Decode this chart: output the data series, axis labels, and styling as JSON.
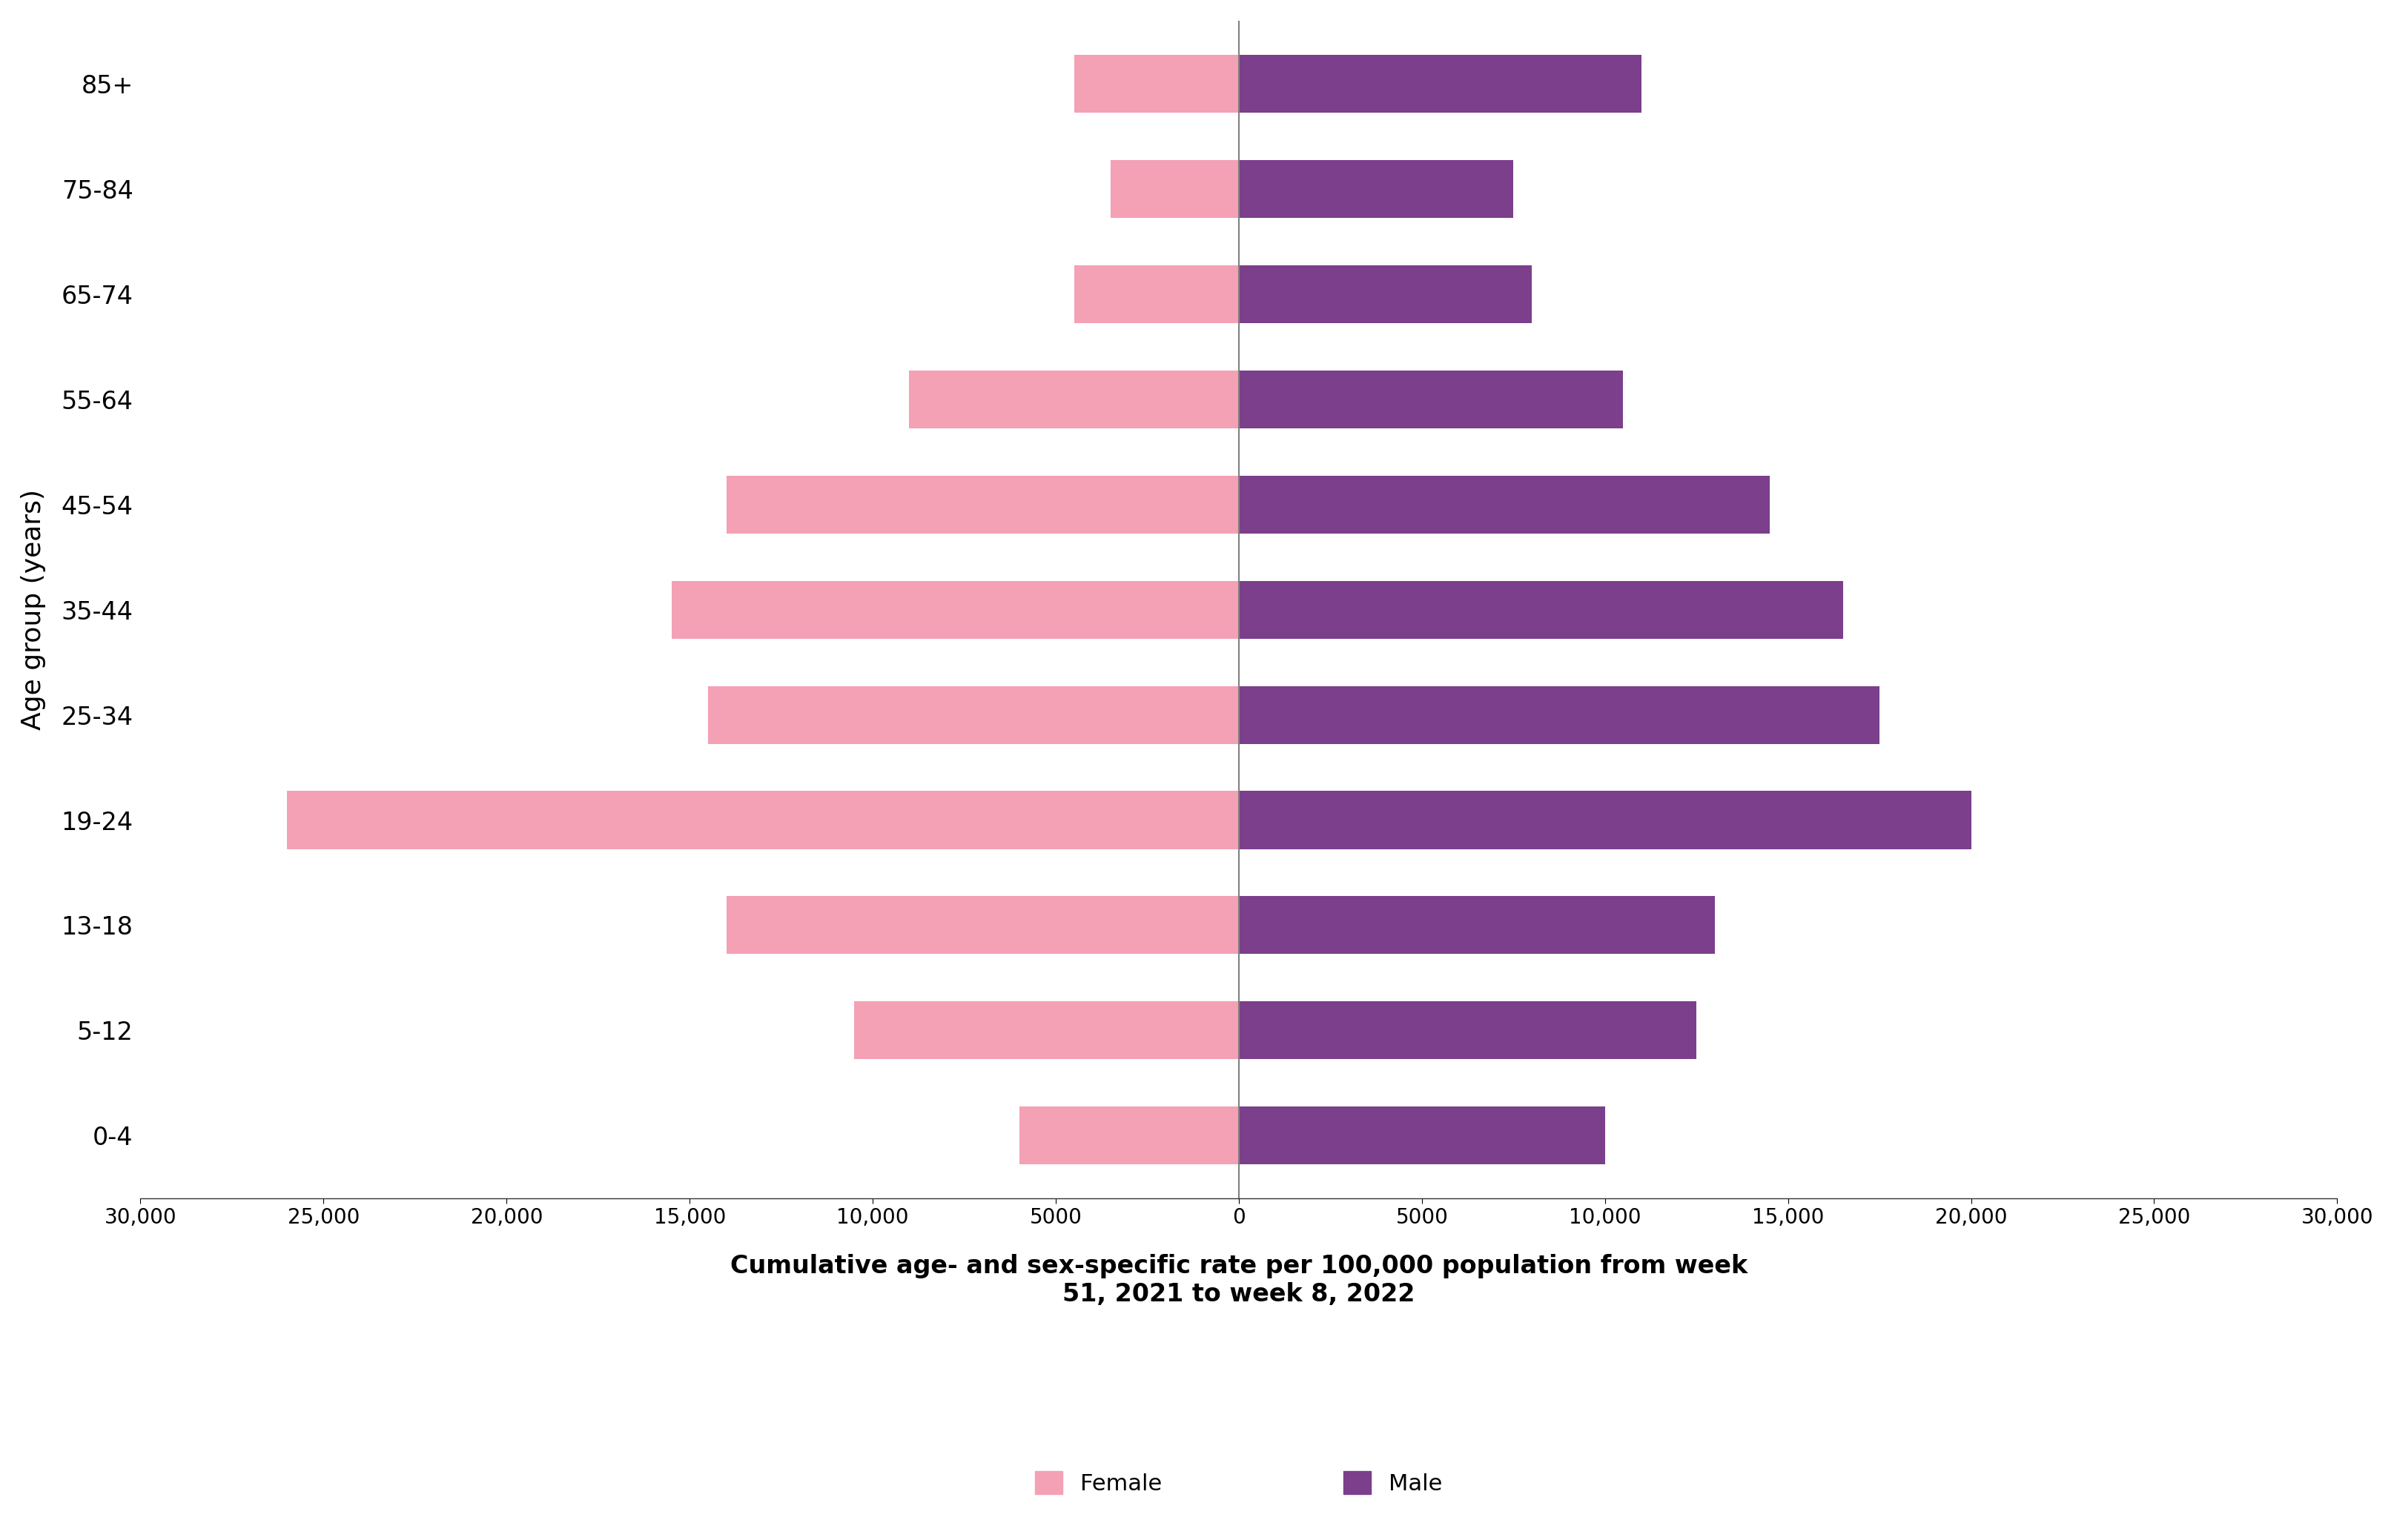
{
  "age_groups": [
    "0-4",
    "5-12",
    "13-18",
    "19-24",
    "25-34",
    "35-44",
    "45-54",
    "55-64",
    "65-74",
    "75-84",
    "85+"
  ],
  "female_values": [
    6000,
    10500,
    14000,
    26000,
    14500,
    15500,
    14000,
    9000,
    4500,
    3500,
    4500
  ],
  "male_values": [
    10000,
    12500,
    13000,
    20000,
    17500,
    16500,
    14500,
    10500,
    8000,
    7500,
    11000
  ],
  "female_color": "#f4a0b5",
  "male_color": "#7b3f8c",
  "xlabel": "Cumulative age- and sex-specific rate per 100,000 population from week\n51, 2021 to week 8, 2022",
  "ylabel": "Age group (years)",
  "xlim": 30000,
  "legend_female": "Female",
  "legend_male": "Male",
  "bar_height": 0.55,
  "background_color": "#ffffff",
  "xlabel_fontsize": 24,
  "ylabel_fontsize": 26,
  "ytick_fontsize": 24,
  "xtick_fontsize": 20,
  "legend_fontsize": 22
}
